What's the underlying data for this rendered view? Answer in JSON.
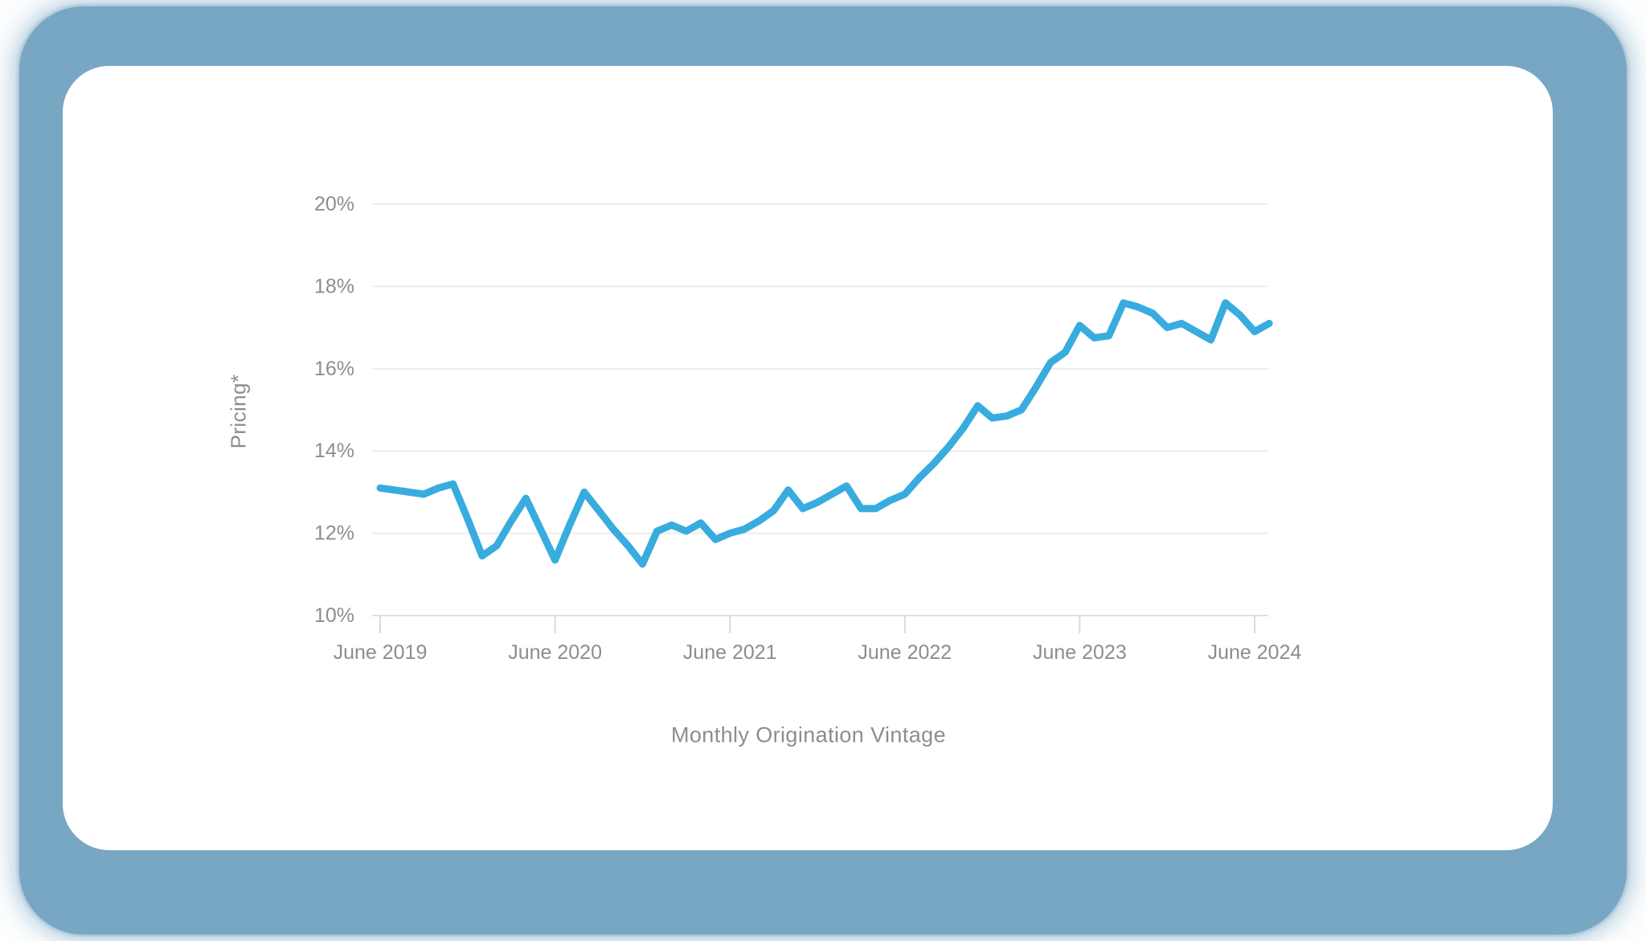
{
  "frame": {
    "frame_color": "#78a7c4",
    "card_color": "#ffffff",
    "page_background": "#ffffff"
  },
  "chart_data": {
    "type": "line",
    "title": "",
    "xlabel": "Monthly Origination Vintage",
    "ylabel": "Pricing*",
    "ylim": [
      10,
      20
    ],
    "grid": true,
    "legend": "none",
    "line_color": "#38acdf",
    "gridline_color": "#ececec",
    "axis_line_color": "#e0e0e0",
    "tick_color": "#d9d9d9",
    "label_color": "#8d8d8d",
    "y_tick_values": [
      20,
      18,
      16,
      14,
      12,
      10
    ],
    "y_tick_labels": [
      "20%",
      "18%",
      "16%",
      "14%",
      "12%",
      "10%"
    ],
    "x_tick_labels": [
      "June 2019",
      "June 2020",
      "June 2021",
      "June 2022",
      "June 2023",
      "June 2024"
    ],
    "x_tick_positions": [
      0,
      12,
      24,
      36,
      48,
      60
    ],
    "x": [
      "Jun 2019",
      "Jul 2019",
      "Aug 2019",
      "Sep 2019",
      "Oct 2019",
      "Nov 2019",
      "Dec 2019",
      "Jan 2020",
      "Feb 2020",
      "Mar 2020",
      "Apr 2020",
      "May 2020",
      "Jun 2020",
      "Jul 2020",
      "Aug 2020",
      "Sep 2020",
      "Oct 2020",
      "Nov 2020",
      "Dec 2020",
      "Jan 2021",
      "Feb 2021",
      "Mar 2021",
      "Apr 2021",
      "May 2021",
      "Jun 2021",
      "Jul 2021",
      "Aug 2021",
      "Sep 2021",
      "Oct 2021",
      "Nov 2021",
      "Dec 2021",
      "Jan 2022",
      "Feb 2022",
      "Mar 2022",
      "Apr 2022",
      "May 2022",
      "Jun 2022",
      "Jul 2022",
      "Aug 2022",
      "Sep 2022",
      "Oct 2022",
      "Nov 2022",
      "Dec 2022",
      "Jan 2023",
      "Feb 2023",
      "Mar 2023",
      "Apr 2023",
      "May 2023",
      "Jun 2023",
      "Jul 2023",
      "Aug 2023",
      "Sep 2023",
      "Oct 2023",
      "Nov 2023",
      "Dec 2023",
      "Jan 2024",
      "Feb 2024",
      "Mar 2024",
      "Apr 2024",
      "May 2024",
      "Jun 2024",
      "Jul 2024"
    ],
    "series": [
      {
        "name": "Pricing",
        "unit": "%",
        "values": [
          13.1,
          13.05,
          13.0,
          12.95,
          13.1,
          13.2,
          12.35,
          11.45,
          11.7,
          12.3,
          12.85,
          12.1,
          11.35,
          12.2,
          13.0,
          12.55,
          12.1,
          11.7,
          11.25,
          12.05,
          12.2,
          12.05,
          12.25,
          11.85,
          12.0,
          12.1,
          12.3,
          12.55,
          13.05,
          12.6,
          12.75,
          12.95,
          13.15,
          12.6,
          12.6,
          12.8,
          12.95,
          13.35,
          13.7,
          14.1,
          14.55,
          15.1,
          14.8,
          14.85,
          15.0,
          15.55,
          16.15,
          16.4,
          17.05,
          16.75,
          16.8,
          17.6,
          17.5,
          17.35,
          17.0,
          17.1,
          16.9,
          16.7,
          17.6,
          17.3,
          16.9,
          17.1
        ]
      }
    ]
  }
}
